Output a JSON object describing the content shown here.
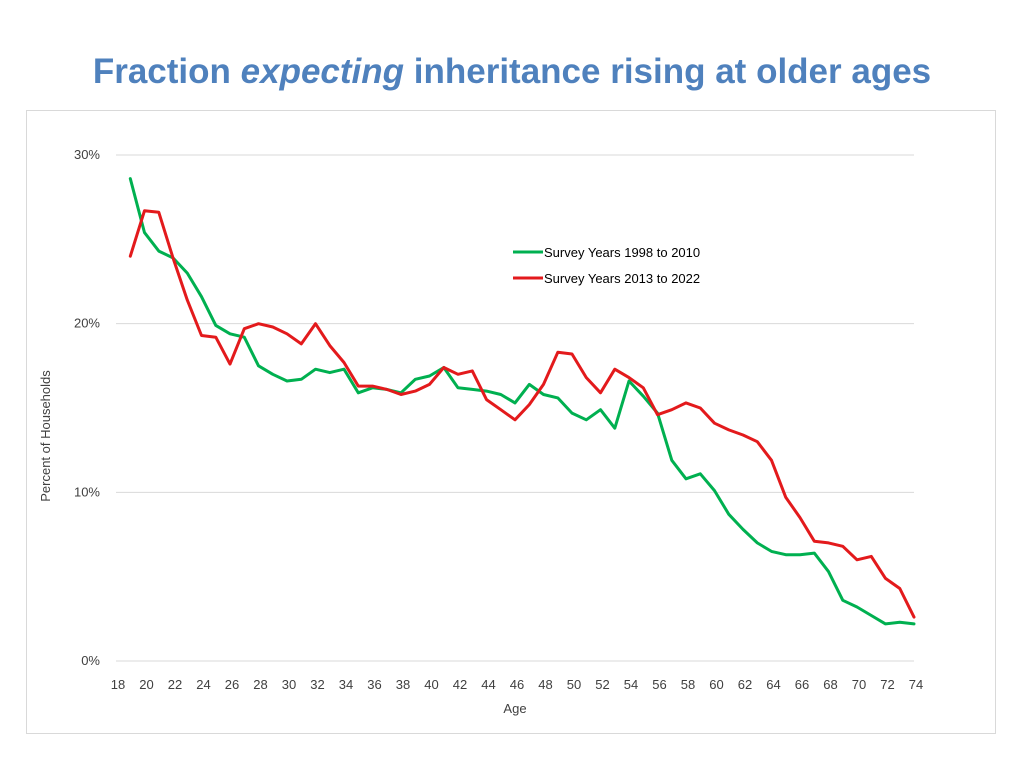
{
  "title": {
    "part1": "Fraction ",
    "part2": "expecting",
    "part3": " inheritance rising at older ages"
  },
  "chart_data": {
    "type": "line",
    "title": "Fraction expecting inheritance rising at older ages",
    "xlabel": "Age",
    "ylabel": "Percent of Households",
    "x": [
      19,
      20,
      21,
      22,
      23,
      24,
      25,
      26,
      27,
      28,
      29,
      30,
      31,
      32,
      33,
      34,
      35,
      36,
      37,
      38,
      39,
      40,
      41,
      42,
      43,
      44,
      45,
      46,
      47,
      48,
      49,
      50,
      51,
      52,
      53,
      54,
      55,
      56,
      57,
      58,
      59,
      60,
      61,
      62,
      63,
      64,
      65,
      66,
      67,
      68,
      69,
      70,
      71,
      72,
      73,
      74
    ],
    "xlim": [
      18,
      74
    ],
    "xticks": [
      "18",
      "20",
      "22",
      "24",
      "26",
      "28",
      "30",
      "32",
      "34",
      "36",
      "38",
      "40",
      "42",
      "44",
      "46",
      "48",
      "50",
      "52",
      "54",
      "56",
      "58",
      "60",
      "62",
      "64",
      "66",
      "68",
      "70",
      "72",
      "74"
    ],
    "ylim": [
      0,
      30
    ],
    "yticks": [
      "0%",
      "10%",
      "20%",
      "30%"
    ],
    "grid": true,
    "legend_position": "upper-center-right",
    "colors": {
      "series1": "#00b050",
      "series2": "#e31a1c",
      "grid": "#d9d9d9"
    },
    "series": [
      {
        "name": "Survey Years 1998 to 2010",
        "values": [
          28.6,
          25.4,
          24.3,
          23.9,
          23.0,
          21.6,
          19.9,
          19.4,
          19.2,
          17.5,
          17.0,
          16.6,
          16.7,
          17.3,
          17.1,
          17.3,
          15.9,
          16.2,
          16.1,
          15.9,
          16.7,
          16.9,
          17.4,
          16.2,
          16.1,
          16.0,
          15.8,
          15.3,
          16.4,
          15.8,
          15.6,
          14.7,
          14.3,
          14.9,
          13.8,
          16.6,
          15.7,
          14.7,
          11.9,
          10.8,
          11.1,
          10.1,
          8.7,
          7.8,
          7.0,
          6.5,
          6.3,
          6.3,
          6.4,
          5.3,
          3.6,
          3.2,
          2.7,
          2.2,
          2.3,
          2.2
        ]
      },
      {
        "name": "Survey Years 2013 to 2022",
        "values": [
          24.0,
          26.7,
          26.6,
          23.9,
          21.4,
          19.3,
          19.2,
          17.6,
          19.7,
          20.0,
          19.8,
          19.4,
          18.8,
          20.0,
          18.7,
          17.7,
          16.3,
          16.3,
          16.1,
          15.8,
          16.0,
          16.4,
          17.4,
          17.0,
          17.2,
          15.5,
          14.9,
          14.3,
          15.2,
          16.4,
          18.3,
          18.2,
          16.8,
          15.9,
          17.3,
          16.8,
          16.2,
          14.6,
          14.9,
          15.3,
          15.0,
          14.1,
          13.7,
          13.4,
          13.0,
          11.9,
          9.7,
          8.5,
          7.1,
          7.0,
          6.8,
          6.0,
          6.2,
          4.9,
          4.3,
          2.6
        ]
      }
    ]
  }
}
